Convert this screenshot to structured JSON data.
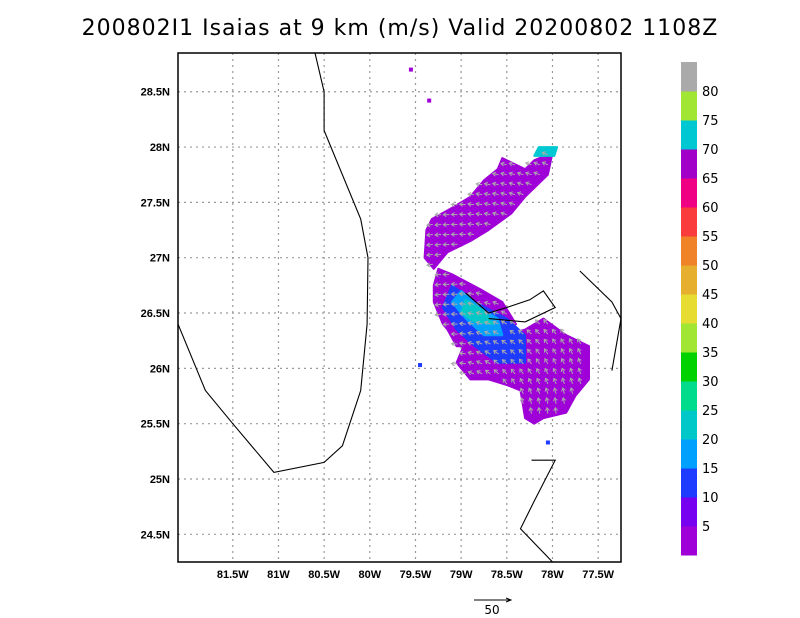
{
  "title": "200802I1 Isaias at 9 km (m/s) Valid 20200802 1108Z",
  "chart_data": {
    "type": "heatmap",
    "title": "200802I1 Isaias at 9 km (m/s) Valid 20200802 1108Z",
    "xlabel": "",
    "ylabel": "",
    "xlim": [
      -82.1,
      -77.25
    ],
    "ylim": [
      24.25,
      28.85
    ],
    "grid": true,
    "x_ticks": [
      {
        "value": -81.5,
        "label": "81.5W"
      },
      {
        "value": -81.0,
        "label": "81W"
      },
      {
        "value": -80.5,
        "label": "80.5W"
      },
      {
        "value": -80.0,
        "label": "80W"
      },
      {
        "value": -79.5,
        "label": "79.5W"
      },
      {
        "value": -79.0,
        "label": "79W"
      },
      {
        "value": -78.5,
        "label": "78.5W"
      },
      {
        "value": -78.0,
        "label": "78W"
      },
      {
        "value": -77.5,
        "label": "77.5W"
      }
    ],
    "y_ticks": [
      {
        "value": 24.5,
        "label": "24.5N"
      },
      {
        "value": 25.0,
        "label": "25N"
      },
      {
        "value": 25.5,
        "label": "25.5N"
      },
      {
        "value": 26.0,
        "label": "26N"
      },
      {
        "value": 26.5,
        "label": "26.5N"
      },
      {
        "value": 27.0,
        "label": "27N"
      },
      {
        "value": 27.5,
        "label": "27.5N"
      },
      {
        "value": 28.0,
        "label": "28N"
      },
      {
        "value": 28.5,
        "label": "28.5N"
      }
    ],
    "colorbar": {
      "levels": [
        {
          "label": "5",
          "color": "#a000d8"
        },
        {
          "label": "10",
          "color": "#7800f0"
        },
        {
          "label": "15",
          "color": "#1e3cff"
        },
        {
          "label": "20",
          "color": "#00a0ff"
        },
        {
          "label": "25",
          "color": "#00c8c8"
        },
        {
          "label": "30",
          "color": "#00dc8c"
        },
        {
          "label": "35",
          "color": "#00d200"
        },
        {
          "label": "40",
          "color": "#a0e632"
        },
        {
          "label": "45",
          "color": "#e6dc32"
        },
        {
          "label": "50",
          "color": "#e6af2d"
        },
        {
          "label": "55",
          "color": "#f08228"
        },
        {
          "label": "60",
          "color": "#fa3c3c"
        },
        {
          "label": "65",
          "color": "#f00082"
        },
        {
          "label": "70",
          "color": "#a000c8"
        },
        {
          "label": "75",
          "color": "#00c8d2"
        },
        {
          "label": "80",
          "color": "#a0e632"
        },
        {
          "label": "",
          "color": "#aaaaaa"
        }
      ]
    },
    "coastlines": [
      {
        "name": "florida",
        "lon": [
          -80.6,
          -80.5,
          -80.5,
          -80.1,
          -80.02,
          -80.03,
          -80.1,
          -80.3,
          -80.5,
          -81.05,
          -81.5,
          -81.8,
          -82.1
        ],
        "lat": [
          28.85,
          28.5,
          28.15,
          27.35,
          27.0,
          26.4,
          25.8,
          25.3,
          25.15,
          25.06,
          25.5,
          25.8,
          26.4
        ]
      },
      {
        "name": "grand-bahama",
        "lon": [
          -78.95,
          -78.7,
          -78.5,
          -78.25,
          -78.1,
          -77.97,
          -78.3,
          -78.7
        ],
        "lat": [
          26.68,
          26.5,
          26.55,
          26.62,
          26.7,
          26.55,
          26.42,
          26.45
        ]
      },
      {
        "name": "abaco",
        "lon": [
          -77.7,
          -77.35,
          -77.25,
          -77.35
        ],
        "lat": [
          26.88,
          26.6,
          26.45,
          25.98
        ]
      },
      {
        "name": "andros",
        "lon": [
          -78.23,
          -77.97,
          -78.2,
          -78.35,
          -78.0,
          -77.98
        ],
        "lat": [
          25.17,
          25.17,
          24.8,
          24.55,
          24.25,
          24.25
        ]
      }
    ],
    "wind_field": {
      "regions": [
        {
          "name": "northern-band",
          "lon": [
            -78.55,
            -78.3,
            -78.2,
            -78.0,
            -78.05,
            -78.3,
            -78.45,
            -78.7,
            -78.9,
            -79.15,
            -79.3,
            -79.4,
            -79.38,
            -79.32,
            -79.1,
            -78.9,
            -78.75,
            -78.6
          ],
          "lat": [
            27.9,
            27.8,
            27.88,
            27.95,
            27.75,
            27.55,
            27.4,
            27.25,
            27.15,
            27.05,
            26.9,
            27.0,
            27.25,
            27.35,
            27.45,
            27.55,
            27.7,
            27.8
          ],
          "color": "#a000d8"
        },
        {
          "name": "western-arm",
          "lon": [
            -79.1,
            -78.8,
            -78.55,
            -78.4,
            -78.55,
            -78.75,
            -78.9,
            -79.05,
            -79.15,
            -79.2,
            -79.25,
            -79.3,
            -79.3,
            -79.25
          ],
          "lat": [
            26.85,
            26.72,
            26.6,
            26.4,
            26.3,
            26.3,
            26.2,
            26.2,
            26.35,
            26.4,
            26.5,
            26.6,
            26.75,
            26.9
          ],
          "color": "#a000d8"
        },
        {
          "name": "southern-band",
          "lon": [
            -78.95,
            -78.6,
            -78.3,
            -78.1,
            -77.85,
            -77.6,
            -77.6,
            -77.75,
            -77.85,
            -78.1,
            -78.2,
            -78.3,
            -78.35,
            -78.5,
            -78.7,
            -78.9,
            -79.05
          ],
          "lat": [
            26.25,
            26.28,
            26.35,
            26.45,
            26.3,
            26.2,
            25.9,
            25.75,
            25.6,
            25.55,
            25.5,
            25.55,
            25.8,
            25.85,
            25.9,
            25.9,
            26.05
          ],
          "color": "#a000d8"
        },
        {
          "name": "core-blue",
          "lon": [
            -79.1,
            -78.85,
            -78.5,
            -78.3,
            -78.3,
            -78.6,
            -78.85,
            -79.05,
            -79.2
          ],
          "lat": [
            26.75,
            26.6,
            26.45,
            26.3,
            26.05,
            26.05,
            26.2,
            26.35,
            26.55
          ],
          "color": "#1e3cff"
        },
        {
          "name": "core-cyan",
          "lon": [
            -79.0,
            -78.8,
            -78.6,
            -78.55,
            -78.75,
            -78.95,
            -79.1
          ],
          "lat": [
            26.7,
            26.55,
            26.45,
            26.3,
            26.3,
            26.45,
            26.6
          ],
          "color": "#00a0ff"
        },
        {
          "name": "core-teal",
          "lon": [
            -78.95,
            -78.75,
            -78.65,
            -78.85,
            -79.0
          ],
          "lat": [
            26.62,
            26.52,
            26.4,
            26.42,
            26.5
          ],
          "color": "#00c8c8"
        },
        {
          "name": "northeast-edge",
          "lon": [
            -78.15,
            -77.95,
            -77.98,
            -78.2
          ],
          "lat": [
            28.0,
            28.0,
            27.92,
            27.92
          ],
          "color": "#00c8d2"
        }
      ],
      "isolated_cells": [
        {
          "lon": -79.55,
          "lat": 28.7,
          "color": "#a000d8"
        },
        {
          "lon": -79.35,
          "lat": 28.42,
          "color": "#a000d8"
        },
        {
          "lon": -79.45,
          "lat": 26.03,
          "color": "#1e3cff"
        },
        {
          "lon": -78.05,
          "lat": 25.33,
          "color": "#1e3cff"
        }
      ]
    },
    "reference_vector": {
      "value": 50,
      "label": "50"
    }
  }
}
